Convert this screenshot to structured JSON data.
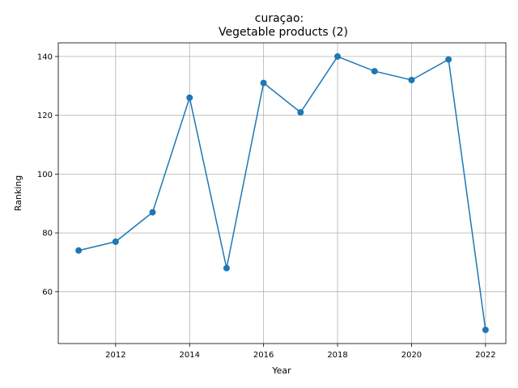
{
  "chart_data": {
    "type": "line",
    "title_line1": "curaçao:",
    "title_line2": "Vegetable products (2)",
    "xlabel": "Year",
    "ylabel": "Ranking",
    "x": [
      2011,
      2012,
      2013,
      2014,
      2015,
      2016,
      2017,
      2018,
      2019,
      2020,
      2021,
      2022
    ],
    "series": [
      {
        "values": [
          74,
          77,
          87,
          126,
          68,
          131,
          121,
          140,
          135,
          132,
          139,
          47
        ]
      }
    ],
    "xlim": [
      2010.45,
      2022.55
    ],
    "ylim": [
      42.35,
      144.65
    ],
    "xticks": [
      2012,
      2014,
      2016,
      2018,
      2020,
      2022
    ],
    "yticks": [
      60,
      80,
      100,
      120,
      140
    ],
    "grid": true,
    "line_color": "#1f77b4"
  }
}
